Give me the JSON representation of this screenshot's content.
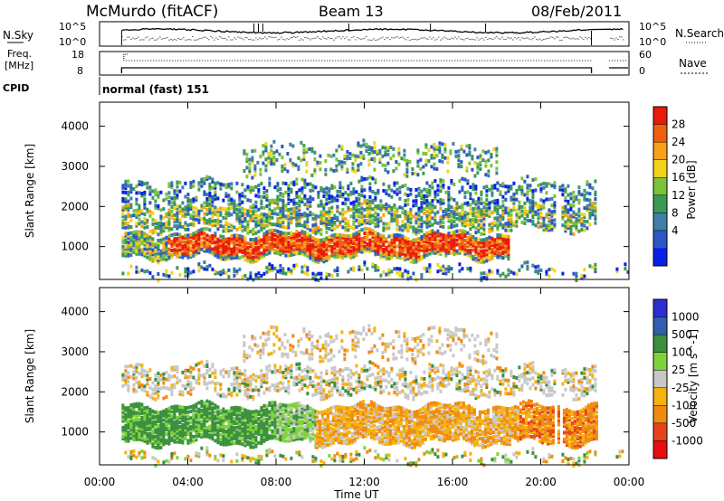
{
  "header": {
    "station": "McMurdo (fitACF)",
    "beam": "Beam 13",
    "date": "08/Feb/2011"
  },
  "noise_panel": {
    "left_label": "N.Sky",
    "right_label": "N.Search",
    "left_ticks": [
      "10^5",
      "10^0"
    ],
    "right_ticks": [
      "10^5",
      "10^0"
    ]
  },
  "freq_panel": {
    "left_label_1": "Freq.",
    "left_label_2": "[MHz]",
    "right_label": "Nave",
    "left_ticks": [
      "18",
      "8"
    ],
    "right_ticks": [
      "60",
      "0"
    ]
  },
  "cpid": {
    "label": "CPID",
    "text": "normal (fast) 151"
  },
  "colors": {
    "power_scale": [
      "#0b1fe6",
      "#2d56c8",
      "#3f7fa8",
      "#3a9a55",
      "#7cc23a",
      "#f3d21a",
      "#f7a11a",
      "#ee6010",
      "#e81a0a"
    ],
    "velocity_scale": [
      "#2c2ecf",
      "#2f5fae",
      "#3b8f3f",
      "#7fd33a",
      "#c8c8c8",
      "#f4b30f",
      "#ef8a13",
      "#e7431a",
      "#e80e0e"
    ]
  },
  "chart_data": [
    {
      "type": "heatmap",
      "title": "Power",
      "xlabel": "Time UT",
      "ylabel": "Slant Range [km]",
      "x_ticks": [
        "00:00",
        "04:00",
        "08:00",
        "12:00",
        "16:00",
        "20:00",
        "00:00"
      ],
      "y_ticks": [
        "1000",
        "2000",
        "3000",
        "4000"
      ],
      "ylim": [
        180,
        4600
      ],
      "colorbar_label": "Power [dB]",
      "colorbar_ticks": [
        "4",
        "8",
        "12",
        "16",
        "20",
        "24",
        "28"
      ],
      "scatter_bands": [
        {
          "range_km": [
            700,
            1300
          ],
          "value_db": 28,
          "time_h": [
            1.0,
            18.6
          ]
        },
        {
          "range_km": [
            1400,
            2000
          ],
          "value_db": 12,
          "time_h": [
            1.0,
            22.5
          ]
        },
        {
          "range_km": [
            2000,
            2600
          ],
          "value_db": 8,
          "time_h": [
            1.0,
            22.5
          ]
        },
        {
          "range_km": [
            2800,
            3500
          ],
          "value_db": 8,
          "time_h": [
            6.5,
            18.0
          ]
        }
      ]
    },
    {
      "type": "heatmap",
      "title": "Velocity",
      "xlabel": "Time UT",
      "ylabel": "Slant Range [km]",
      "x_ticks": [
        "00:00",
        "04:00",
        "08:00",
        "12:00",
        "16:00",
        "20:00",
        "00:00"
      ],
      "y_ticks": [
        "1000",
        "2000",
        "3000",
        "4000"
      ],
      "ylim": [
        180,
        4600
      ],
      "colorbar_label": "Velocity [m s^-1]",
      "colorbar_ticks": [
        "1000",
        "500",
        "100",
        "25",
        "-25",
        "-100",
        "-500",
        "-1000"
      ],
      "scatter_bands": [
        {
          "range_km": [
            700,
            1600
          ],
          "value_ms": 100,
          "time_h": [
            1.0,
            9.8
          ]
        },
        {
          "range_km": [
            700,
            1600
          ],
          "value_ms": -100,
          "time_h": [
            9.8,
            22.5
          ]
        },
        {
          "range_km": [
            1900,
            2600
          ],
          "value_ms": 0,
          "time_h": [
            1.0,
            22.5
          ]
        },
        {
          "range_km": [
            2800,
            3500
          ],
          "value_ms": 0,
          "time_h": [
            6.5,
            18.0
          ]
        }
      ]
    }
  ]
}
